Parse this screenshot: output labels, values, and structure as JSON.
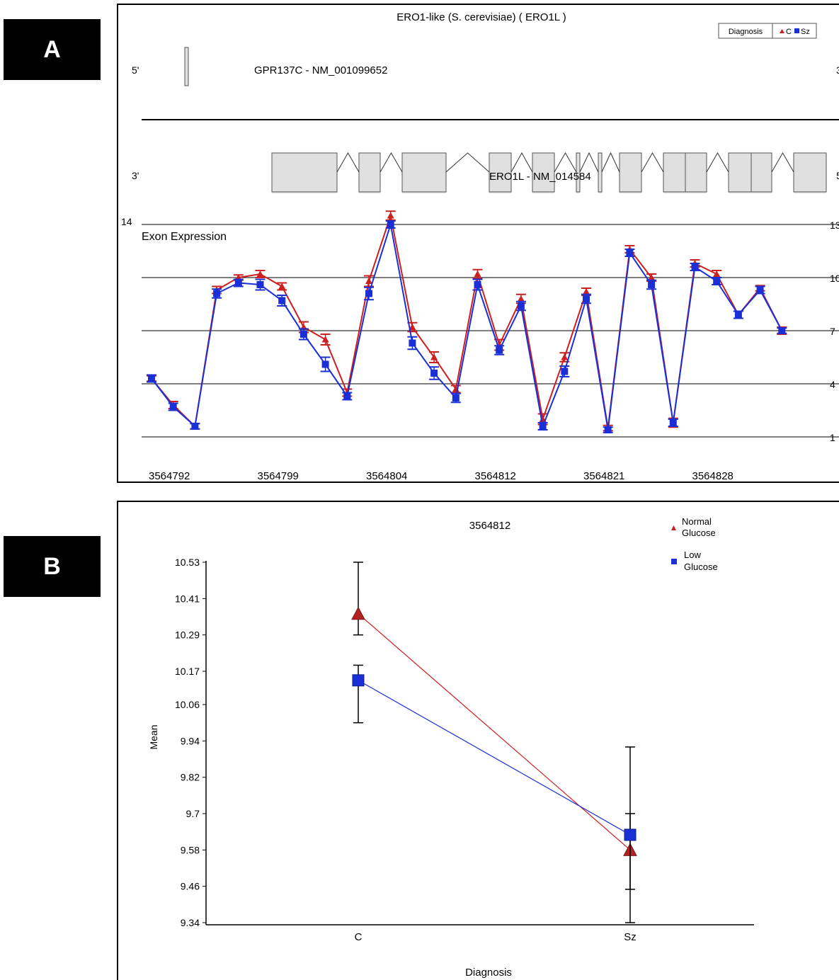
{
  "panel_labels": {
    "a": "A",
    "b": "B"
  },
  "colors": {
    "c": "#cc1f1f",
    "sz": "#1a2fd6",
    "exon_fill": "#e0e0e0",
    "grid": "#000000"
  },
  "panel_a": {
    "title": "ERO1-like (S. cerevisiae)  ( ERO1L )",
    "legend": {
      "title": "Diagnosis",
      "c_label": "C",
      "sz_label": "Sz"
    },
    "strand_top": {
      "five_prime": "5'",
      "three_prime": "3'",
      "gene": "GPR137C - NM_001099652"
    },
    "strand_bottom": {
      "three_prime": "3'",
      "five_prime": "5'",
      "gene": "ERO1L - NM_014584"
    },
    "plot_label": "Exon Expression"
  },
  "panel_b": {
    "title": "3564812",
    "legend": [
      {
        "line1": "Normal",
        "line2": "Glucose"
      },
      {
        "line1": "Low",
        "line2": "Glucose"
      }
    ]
  },
  "chart_data": [
    {
      "type": "line",
      "title": "Exon Expression",
      "left_axis_label": "14",
      "right_ticks": [
        "13",
        "10",
        "7",
        "4",
        "1"
      ],
      "ylim": [
        1,
        13
      ],
      "x_tick_labels": [
        "3564792",
        "3564799",
        "3564804",
        "3564812",
        "3564821",
        "3564828"
      ],
      "x_tick_index": [
        0,
        5,
        10,
        15,
        20,
        25
      ],
      "series": [
        {
          "name": "C",
          "values": [
            4.3,
            2.8,
            1.6,
            9.3,
            10.0,
            10.2,
            9.5,
            7.2,
            6.5,
            3.5,
            9.8,
            13.5,
            7.2,
            5.5,
            3.7,
            10.2,
            6.2,
            8.8,
            2.0,
            5.5,
            9.2,
            1.5,
            11.6,
            10.0,
            1.8,
            10.8,
            10.2,
            7.9,
            9.4,
            7.0
          ],
          "err": [
            0.15,
            0.2,
            0.15,
            0.2,
            0.15,
            0.2,
            0.2,
            0.3,
            0.3,
            0.2,
            0.3,
            0.25,
            0.25,
            0.3,
            0.2,
            0.25,
            0.3,
            0.25,
            0.3,
            0.25,
            0.2,
            0.15,
            0.2,
            0.2,
            0.25,
            0.2,
            0.2,
            0.2,
            0.15,
            0.2
          ]
        },
        {
          "name": "Sz",
          "values": [
            4.3,
            2.7,
            1.6,
            9.1,
            9.7,
            9.6,
            8.7,
            6.8,
            5.1,
            3.3,
            9.1,
            13.0,
            6.3,
            4.6,
            3.2,
            9.6,
            5.9,
            8.4,
            1.6,
            4.7,
            8.8,
            1.4,
            11.4,
            9.6,
            1.8,
            10.6,
            9.8,
            7.9,
            9.3,
            7.0
          ],
          "err": [
            0.2,
            0.2,
            0.15,
            0.25,
            0.2,
            0.3,
            0.3,
            0.3,
            0.4,
            0.2,
            0.35,
            0.2,
            0.35,
            0.35,
            0.25,
            0.3,
            0.25,
            0.25,
            0.2,
            0.3,
            0.25,
            0.15,
            0.2,
            0.25,
            0.2,
            0.2,
            0.2,
            0.2,
            0.2,
            0.15
          ]
        }
      ]
    },
    {
      "type": "line",
      "title": "3564812",
      "xlabel": "Diagnosis",
      "ylabel": "Mean",
      "categories": [
        "C",
        "Sz"
      ],
      "y_ticks": [
        10.53,
        10.41,
        10.29,
        10.17,
        10.06,
        9.94,
        9.82,
        9.7,
        9.58,
        9.46,
        9.34
      ],
      "y_tick_labels": [
        "10.53",
        "10.41",
        "10.29",
        "10.17",
        "10.06",
        "9.94",
        "9.82",
        "9.7",
        "9.58",
        "9.46",
        "9.34"
      ],
      "ylim": [
        9.34,
        10.53
      ],
      "series": [
        {
          "name": "Normal Glucose",
          "values": [
            10.36,
            9.58
          ],
          "lo": [
            10.29,
            9.45
          ],
          "hi": [
            10.53,
            9.7
          ]
        },
        {
          "name": "Low Glucose",
          "values": [
            10.14,
            9.63
          ],
          "lo": [
            10.0,
            9.34
          ],
          "hi": [
            10.19,
            9.92
          ]
        }
      ]
    }
  ]
}
